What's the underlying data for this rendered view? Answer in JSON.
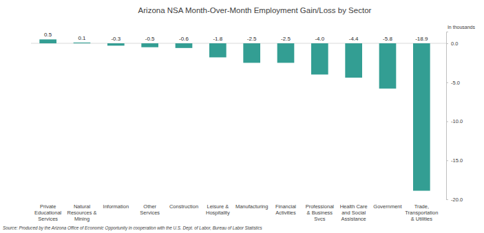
{
  "chart_data": {
    "type": "bar",
    "title": "Arizona NSA Month-Over-Month Employment Gain/Loss by Sector",
    "y_label": "In thousands",
    "source": "Source: Produced by the Arizona Office of Economic Opportunity in cooperation with the U.S. Dept. of Labor, Bureau of Labor Statistics",
    "categories": [
      "Private Educational Services",
      "Natural Resources & Mining",
      "Information",
      "Other Services",
      "Construction",
      "Leisure & Hospitality",
      "Manufacturing",
      "Financial Activities",
      "Professional & Business Svcs",
      "Health Care and Social Assistance",
      "Government",
      "Trade, Transportation & Utilities"
    ],
    "values": [
      0.5,
      0.1,
      -0.3,
      -0.5,
      -0.6,
      -1.8,
      -2.5,
      -2.5,
      -4.0,
      -4.4,
      -5.8,
      -18.9
    ],
    "value_labels": [
      "0.5",
      "0.1",
      "-0.3",
      "-0.5",
      "-0.6",
      "-1.8",
      "-2.5",
      "-2.5",
      "-4.0",
      "-4.4",
      "-5.8",
      "-18.9"
    ],
    "color": "#339e93",
    "ylim": [
      -20,
      1.5
    ],
    "yticks": [
      {
        "value": 0,
        "label": "0.0"
      },
      {
        "value": -5,
        "label": "-5.0"
      },
      {
        "value": -10,
        "label": "-10.0"
      },
      {
        "value": -15,
        "label": "-15.0"
      },
      {
        "value": -20,
        "label": "-20.0"
      }
    ],
    "grid": false,
    "data_labels": true
  }
}
